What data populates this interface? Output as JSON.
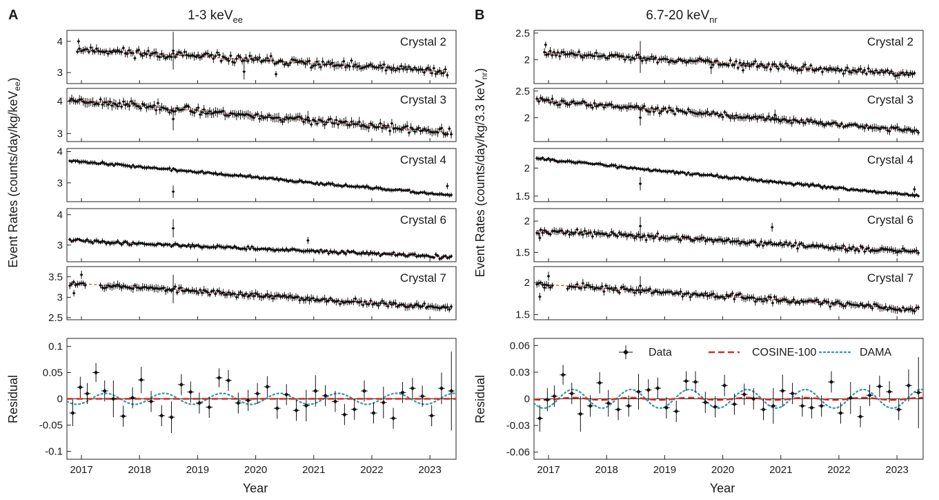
{
  "figure": {
    "panels": [
      {
        "letter": "A",
        "title_main": "1-3 keV",
        "title_sub": "ee"
      },
      {
        "letter": "B",
        "title_main": "6.7-20 keV",
        "title_sub": "nr"
      }
    ],
    "ylabel_left_main": "Event Rates (counts/day/kg/keV",
    "ylabel_left_sub": "ee",
    "ylabel_left_end": ")",
    "ylabel_right_main": "Event Rates (counts/day/kg/3.3 keV",
    "ylabel_right_sub": "nr",
    "ylabel_right_end": ")",
    "residual_label": "Residual",
    "xlabel": "Year",
    "legend": {
      "data": "Data",
      "cosine": "COSINE-100",
      "dama": "DAMA"
    }
  },
  "chart_data": [
    {
      "type": "scatter",
      "panel": "A",
      "crystal": "Crystal 2",
      "xlim": [
        2016.75,
        2023.45
      ],
      "ylim": [
        2.65,
        4.35
      ],
      "yticks": [
        3,
        4
      ],
      "fit": {
        "start": 3.75,
        "end": 3.02
      },
      "start": 2016.93,
      "end": 2023.33,
      "seed": 11,
      "noise": 0.12,
      "err": 0.11,
      "outliers": [
        {
          "x": 2016.95,
          "y": 4.0,
          "err": 0.1
        },
        {
          "x": 2018.58,
          "y": 3.7,
          "err": 0.6
        },
        {
          "x": 2019.8,
          "y": 3.03,
          "err": 0.25
        },
        {
          "x": 2020.35,
          "y": 2.95,
          "err": 0.1
        }
      ]
    },
    {
      "type": "scatter",
      "panel": "A",
      "crystal": "Crystal 3",
      "xlim": [
        2016.75,
        2023.45
      ],
      "ylim": [
        2.75,
        4.4
      ],
      "yticks": [
        3,
        4
      ],
      "fit": {
        "start": 4.05,
        "end": 3.02
      },
      "start": 2016.8,
      "end": 2023.38,
      "seed": 23,
      "noise": 0.1,
      "err": 0.12,
      "outliers": [
        {
          "x": 2018.58,
          "y": 3.45,
          "err": 0.35
        },
        {
          "x": 2020.9,
          "y": 3.5,
          "err": 0.2
        }
      ]
    },
    {
      "type": "scatter",
      "panel": "A",
      "crystal": "Crystal 4",
      "xlim": [
        2016.75,
        2023.45
      ],
      "ylim": [
        2.4,
        4.1
      ],
      "yticks": [
        3,
        4
      ],
      "fit": {
        "start": 3.72,
        "end": 2.6
      },
      "start": 2016.8,
      "end": 2023.38,
      "seed": 37,
      "noise": 0.035,
      "err": 0.06,
      "outliers": [
        {
          "x": 2018.58,
          "y": 2.72,
          "err": 0.2
        },
        {
          "x": 2023.3,
          "y": 2.9,
          "err": 0.1
        }
      ]
    },
    {
      "type": "scatter",
      "panel": "A",
      "crystal": "Crystal 6",
      "xlim": [
        2016.75,
        2023.45
      ],
      "ylim": [
        2.45,
        4.2
      ],
      "yticks": [
        3,
        4
      ],
      "fit": {
        "start": 3.15,
        "end": 2.6
      },
      "start": 2016.8,
      "end": 2023.38,
      "seed": 41,
      "noise": 0.05,
      "err": 0.07,
      "outliers": [
        {
          "x": 2018.58,
          "y": 3.55,
          "err": 0.3
        },
        {
          "x": 2020.9,
          "y": 3.15,
          "err": 0.12
        }
      ]
    },
    {
      "type": "scatter",
      "panel": "A",
      "crystal": "Crystal 7",
      "xlim": [
        2016.75,
        2023.45
      ],
      "ylim": [
        2.45,
        3.75
      ],
      "yticks": [
        2.5,
        3.0,
        3.5
      ],
      "fit": {
        "start": 3.35,
        "end": 2.73
      },
      "start": 2016.8,
      "end": 2023.38,
      "seed": 53,
      "noise": 0.06,
      "err": 0.08,
      "gap": [
        2017.07,
        2017.32
      ],
      "outliers": [
        {
          "x": 2016.87,
          "y": 3.1,
          "err": 0.08
        },
        {
          "x": 2017.0,
          "y": 3.55,
          "err": 0.1
        },
        {
          "x": 2018.58,
          "y": 3.2,
          "err": 0.35
        }
      ]
    },
    {
      "type": "scatter",
      "panel": "B",
      "crystal": "Crystal 2",
      "xlim": [
        2016.75,
        2023.45
      ],
      "ylim": [
        1.55,
        2.55
      ],
      "yticks": [
        2.0,
        2.5
      ],
      "fit": {
        "start": 2.13,
        "end": 1.72
      },
      "start": 2016.93,
      "end": 2023.33,
      "seed": 61,
      "noise": 0.06,
      "err": 0.06,
      "outliers": [
        {
          "x": 2016.95,
          "y": 2.28,
          "err": 0.06
        },
        {
          "x": 2018.58,
          "y": 2.05,
          "err": 0.3
        },
        {
          "x": 2019.8,
          "y": 1.85,
          "err": 0.12
        },
        {
          "x": 2020.35,
          "y": 1.8,
          "err": 0.06
        }
      ]
    },
    {
      "type": "scatter",
      "panel": "B",
      "crystal": "Crystal 3",
      "xlim": [
        2016.75,
        2023.45
      ],
      "ylim": [
        1.55,
        2.55
      ],
      "yticks": [
        2.0,
        2.5
      ],
      "fit": {
        "start": 2.33,
        "end": 1.75
      },
      "start": 2016.8,
      "end": 2023.38,
      "seed": 73,
      "noise": 0.05,
      "err": 0.06,
      "outliers": [
        {
          "x": 2018.58,
          "y": 2.0,
          "err": 0.15
        },
        {
          "x": 2020.9,
          "y": 2.05,
          "err": 0.1
        }
      ]
    },
    {
      "type": "scatter",
      "panel": "B",
      "crystal": "Crystal 4",
      "xlim": [
        2016.75,
        2023.45
      ],
      "ylim": [
        1.4,
        2.35
      ],
      "yticks": [
        1.5,
        2.0
      ],
      "fit": {
        "start": 2.17,
        "end": 1.5
      },
      "start": 2016.8,
      "end": 2023.38,
      "seed": 83,
      "noise": 0.02,
      "err": 0.035,
      "outliers": [
        {
          "x": 2018.58,
          "y": 1.72,
          "err": 0.12
        },
        {
          "x": 2023.3,
          "y": 1.62,
          "err": 0.06
        }
      ]
    },
    {
      "type": "scatter",
      "panel": "B",
      "crystal": "Crystal 6",
      "xlim": [
        2016.75,
        2023.45
      ],
      "ylim": [
        1.35,
        2.2
      ],
      "yticks": [
        1.5,
        2.0
      ],
      "fit": {
        "start": 1.85,
        "end": 1.5
      },
      "start": 2016.8,
      "end": 2023.38,
      "seed": 97,
      "noise": 0.04,
      "err": 0.05,
      "outliers": [
        {
          "x": 2016.85,
          "y": 1.73,
          "err": 0.05
        },
        {
          "x": 2018.58,
          "y": 1.92,
          "err": 0.15
        },
        {
          "x": 2020.85,
          "y": 1.9,
          "err": 0.07
        }
      ]
    },
    {
      "type": "scatter",
      "panel": "B",
      "crystal": "Crystal 7",
      "xlim": [
        2016.75,
        2023.45
      ],
      "ylim": [
        1.42,
        2.25
      ],
      "yticks": [
        1.5,
        2.0
      ],
      "fit": {
        "start": 1.98,
        "end": 1.58
      },
      "start": 2016.8,
      "end": 2023.38,
      "seed": 107,
      "noise": 0.04,
      "err": 0.05,
      "gap": [
        2017.07,
        2017.32
      ],
      "outliers": [
        {
          "x": 2016.85,
          "y": 1.78,
          "err": 0.06
        },
        {
          "x": 2016.93,
          "y": 1.92,
          "err": 0.06
        },
        {
          "x": 2017.0,
          "y": 2.1,
          "err": 0.07
        },
        {
          "x": 2018.58,
          "y": 1.95,
          "err": 0.15
        }
      ]
    },
    {
      "type": "residual",
      "panel": "A",
      "xlim": [
        2016.75,
        2023.45
      ],
      "ylim": [
        -0.115,
        0.115
      ],
      "yticks": [
        -0.1,
        -0.05,
        0,
        0.05,
        0.1
      ],
      "ytick_labels": [
        "-0.1",
        "-0.05",
        "0",
        "0.05",
        "0.1"
      ],
      "xticks": [
        2017,
        2018,
        2019,
        2020,
        2021,
        2022,
        2023
      ],
      "xhalfwidth": 0.058,
      "x": [
        2016.85,
        2016.98,
        2017.1,
        2017.25,
        2017.4,
        2017.55,
        2017.72,
        2017.88,
        2018.03,
        2018.2,
        2018.38,
        2018.55,
        2018.72,
        2018.88,
        2019.03,
        2019.2,
        2019.37,
        2019.53,
        2019.7,
        2019.87,
        2020.03,
        2020.2,
        2020.37,
        2020.53,
        2020.7,
        2020.87,
        2021.03,
        2021.2,
        2021.37,
        2021.53,
        2021.7,
        2021.87,
        2022.03,
        2022.2,
        2022.37,
        2022.53,
        2022.7,
        2022.87,
        2023.03,
        2023.2,
        2023.37
      ],
      "y": [
        -0.027,
        0.022,
        0.01,
        0.05,
        0.015,
        0.0,
        -0.033,
        0.002,
        0.036,
        -0.005,
        -0.032,
        -0.035,
        0.027,
        0.013,
        -0.008,
        -0.016,
        0.04,
        0.035,
        -0.008,
        -0.003,
        0.01,
        0.023,
        -0.018,
        0.008,
        -0.022,
        -0.013,
        0.015,
        0.006,
        -0.005,
        -0.03,
        -0.02,
        0.015,
        -0.027,
        -0.007,
        -0.037,
        0.012,
        0.02,
        0.005,
        -0.032,
        0.02,
        0.015
      ],
      "err": [
        0.025,
        0.02,
        0.02,
        0.018,
        0.02,
        0.035,
        0.02,
        0.02,
        0.025,
        0.02,
        0.02,
        0.03,
        0.02,
        0.02,
        0.02,
        0.02,
        0.018,
        0.02,
        0.02,
        0.02,
        0.02,
        0.02,
        0.02,
        0.02,
        0.02,
        0.03,
        0.03,
        0.02,
        0.02,
        0.02,
        0.02,
        0.02,
        0.02,
        0.03,
        0.02,
        0.02,
        0.02,
        0.02,
        0.02,
        0.03,
        0.075
      ],
      "cosine_amplitude": 0.0,
      "dama_amplitude": 0.0105
    },
    {
      "type": "residual",
      "panel": "B",
      "xlim": [
        2016.75,
        2023.45
      ],
      "ylim": [
        -0.068,
        0.068
      ],
      "yticks": [
        -0.06,
        -0.03,
        0,
        0.03,
        0.06
      ],
      "ytick_labels": [
        "-0.06",
        "-0.03",
        "0",
        "0.03",
        "0.06"
      ],
      "xticks": [
        2017,
        2018,
        2019,
        2020,
        2021,
        2022,
        2023
      ],
      "xhalfwidth": 0.058,
      "x": [
        2016.85,
        2016.98,
        2017.1,
        2017.25,
        2017.4,
        2017.55,
        2017.72,
        2017.88,
        2018.03,
        2018.2,
        2018.38,
        2018.55,
        2018.72,
        2018.88,
        2019.03,
        2019.2,
        2019.37,
        2019.53,
        2019.7,
        2019.87,
        2020.03,
        2020.2,
        2020.37,
        2020.53,
        2020.7,
        2020.87,
        2021.03,
        2021.2,
        2021.37,
        2021.53,
        2021.7,
        2021.87,
        2022.03,
        2022.2,
        2022.37,
        2022.53,
        2022.7,
        2022.87,
        2023.03,
        2023.2,
        2023.37
      ],
      "y": [
        -0.022,
        -0.001,
        0.003,
        0.027,
        0.006,
        -0.017,
        -0.008,
        0.018,
        -0.005,
        -0.012,
        -0.008,
        0.008,
        0.01,
        0.012,
        -0.01,
        -0.014,
        0.02,
        0.019,
        -0.004,
        -0.009,
        0.015,
        -0.006,
        0.005,
        0.0,
        -0.012,
        -0.008,
        0.009,
        0.006,
        -0.008,
        -0.01,
        -0.008,
        0.019,
        -0.016,
        0.001,
        -0.02,
        0.004,
        0.014,
        0.008,
        -0.012,
        0.015,
        0.007
      ],
      "err": [
        0.015,
        0.013,
        0.012,
        0.011,
        0.012,
        0.02,
        0.012,
        0.012,
        0.015,
        0.012,
        0.012,
        0.02,
        0.012,
        0.012,
        0.012,
        0.012,
        0.011,
        0.012,
        0.012,
        0.012,
        0.012,
        0.012,
        0.012,
        0.012,
        0.012,
        0.02,
        0.018,
        0.012,
        0.012,
        0.012,
        0.012,
        0.012,
        0.012,
        0.018,
        0.012,
        0.012,
        0.012,
        0.012,
        0.012,
        0.018,
        0.04
      ],
      "cosine_amplitude": 0.0012,
      "dama_amplitude": 0.0105
    }
  ]
}
